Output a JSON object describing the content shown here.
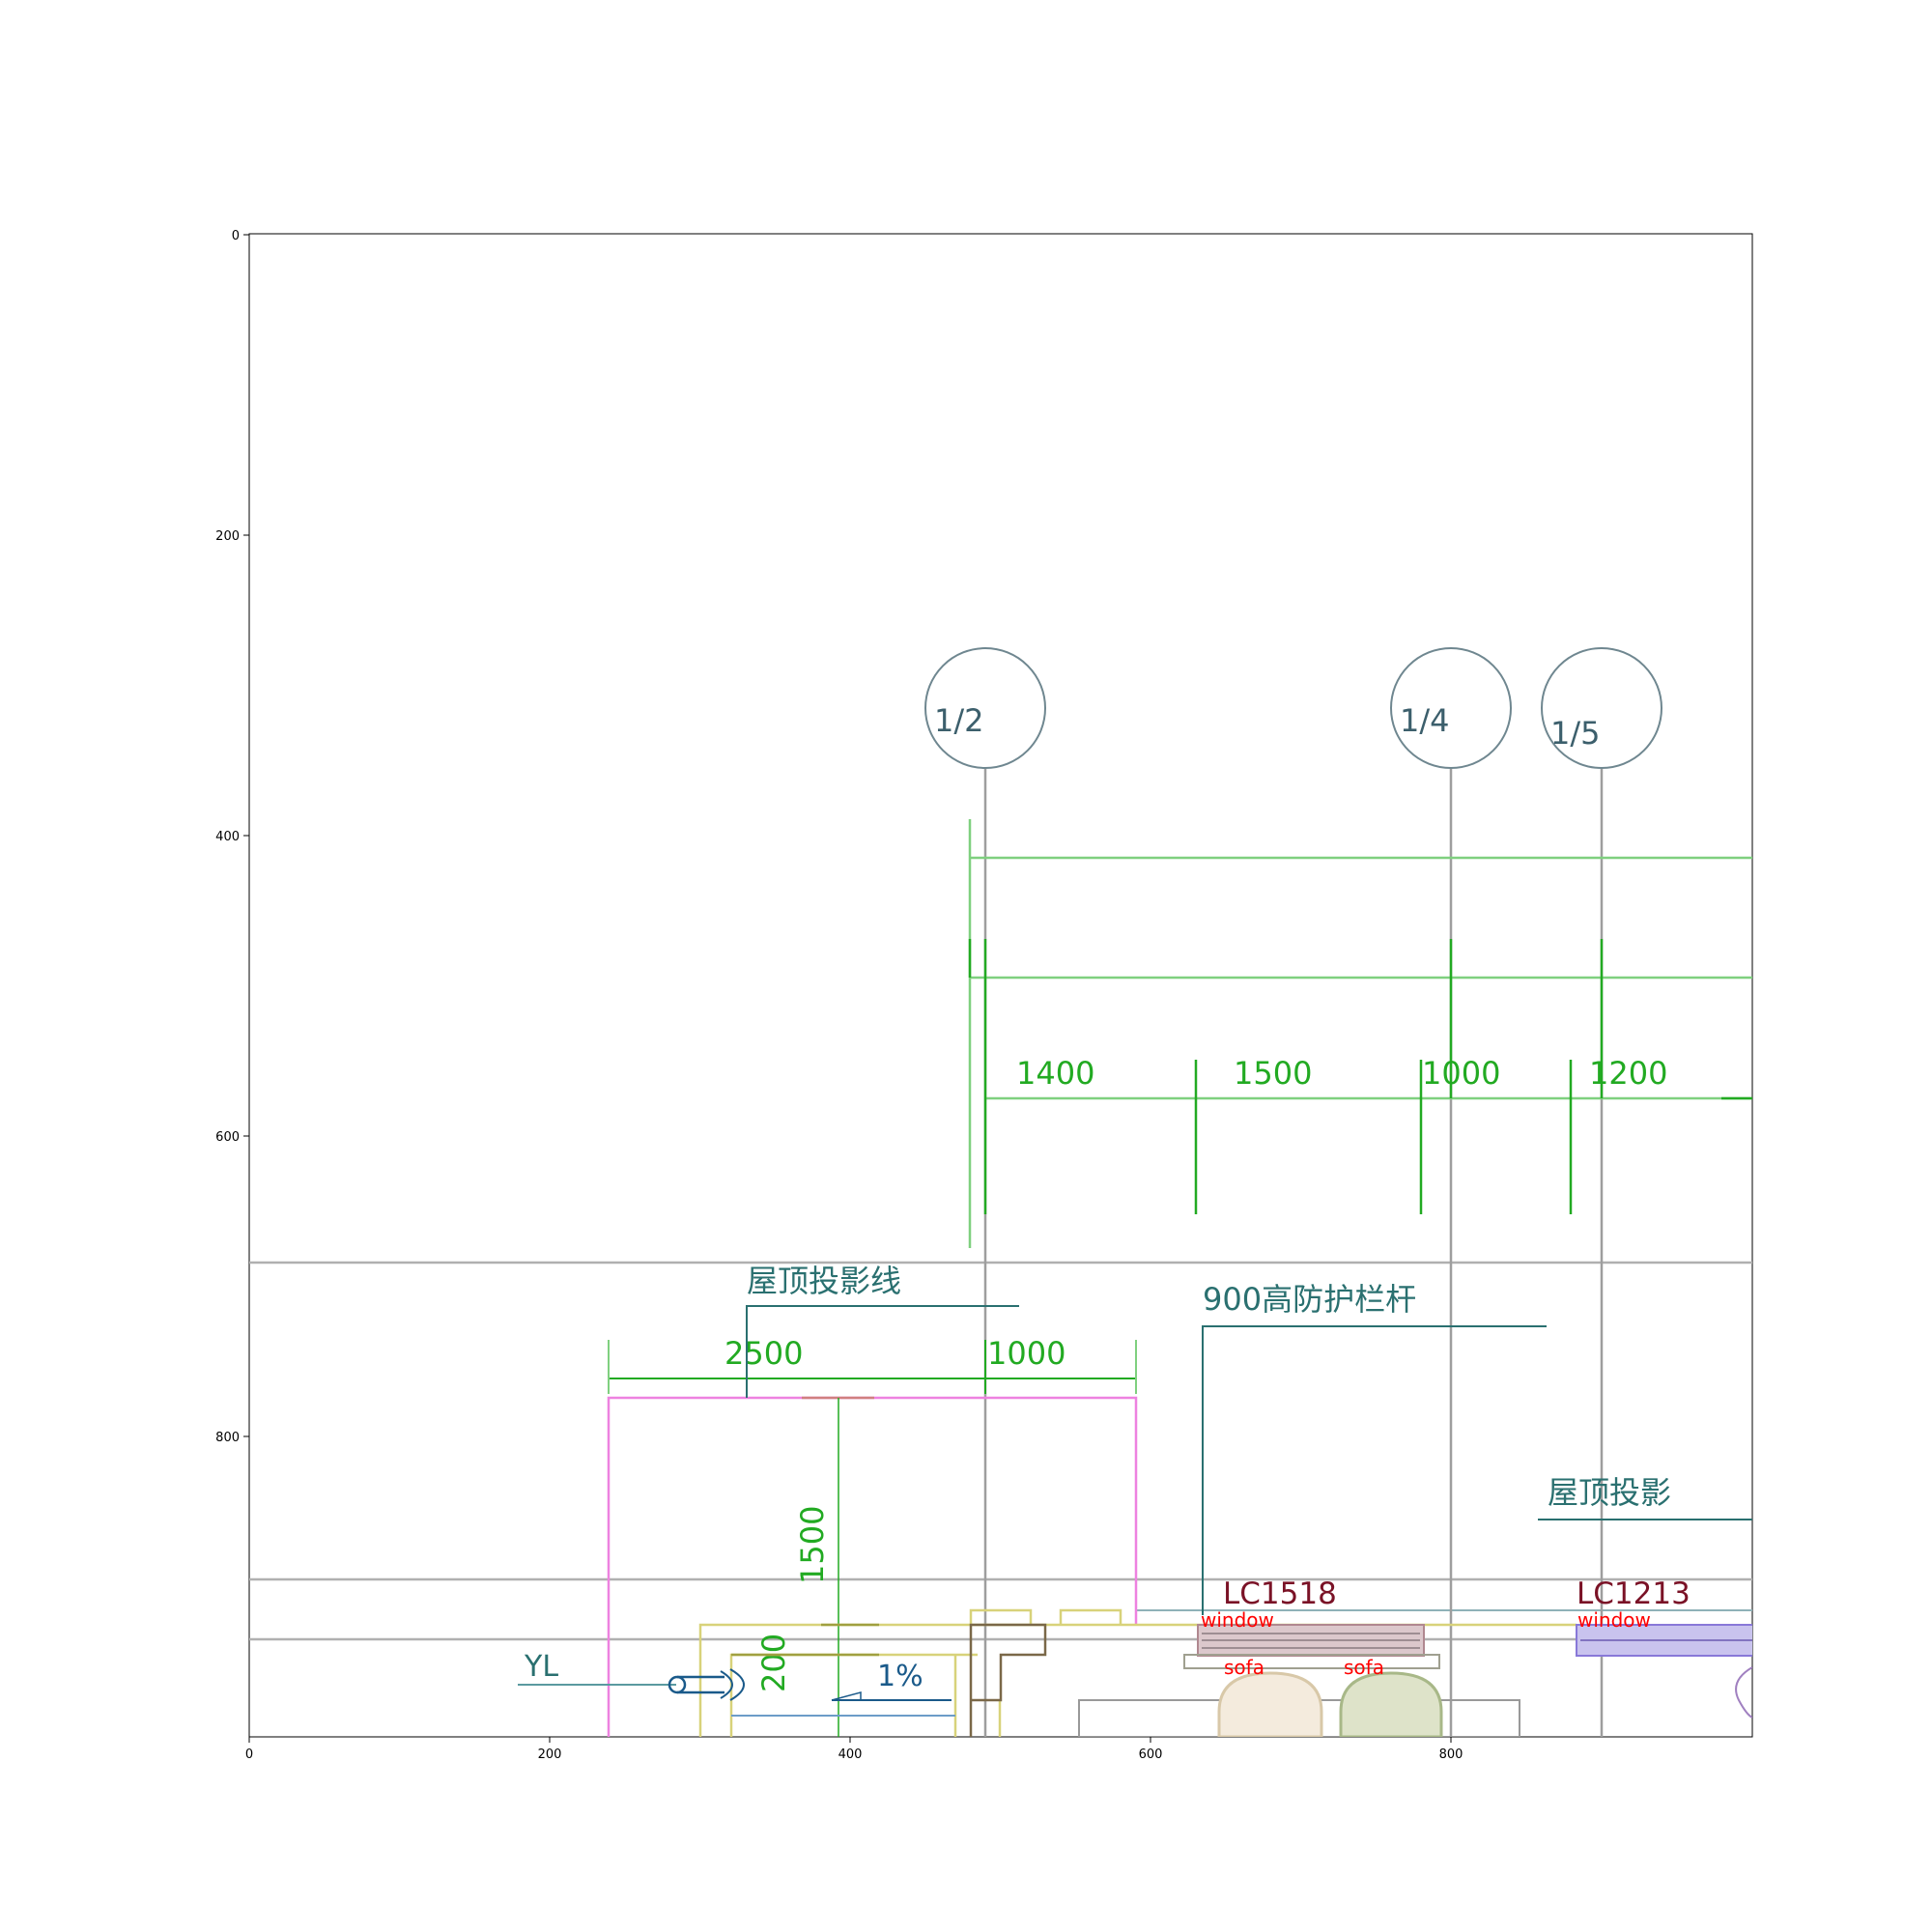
{
  "figure": {
    "x_ticks": [
      "0",
      "200",
      "400",
      "600",
      "800"
    ],
    "y_ticks": [
      "0",
      "200",
      "400",
      "600",
      "800"
    ]
  },
  "axis_labels": [
    "1/2",
    "1/4",
    "1/5"
  ],
  "dimensions": {
    "top_row": [
      "1400",
      "1500",
      "1000",
      "1200"
    ],
    "mid_row": [
      "2500",
      "1000"
    ],
    "vertical": [
      "1500",
      "200"
    ]
  },
  "annotations": {
    "roof_line": "屋顶投影线",
    "railing": "900高防护栏杆",
    "roof_proj": "屋顶投影",
    "window_code_1": "LC1518",
    "window_code_2": "LC1213",
    "rain_pipe": "YL",
    "slope": "1%"
  },
  "object_labels": {
    "window_1": "window",
    "window_2": "window",
    "sofa_1": "sofa",
    "sofa_2": "sofa"
  },
  "colors": {
    "grid": "#9e9e9e",
    "axis_circle": "#6f8790",
    "axis_text": "#3c5f6c",
    "dimension": "#22aa22",
    "dimension_light": "#7fd07f",
    "annotation": "#2a7070",
    "window_code": "#7a1226",
    "object_label": "#ff0000",
    "magenta": "#ee82e0",
    "yellow": "#d8d27a",
    "olive": "#8a8a3a",
    "brown": "#7a6848",
    "blue": "#6c9cc8",
    "dark_blue": "#1a5a8a",
    "window_fill": "#dcc8cc",
    "window_fill_2": "#c9c3ee",
    "sofa_fill_1": "#f4ebdd",
    "sofa_fill_2": "#dee3c9",
    "purple": "#a080c0"
  }
}
